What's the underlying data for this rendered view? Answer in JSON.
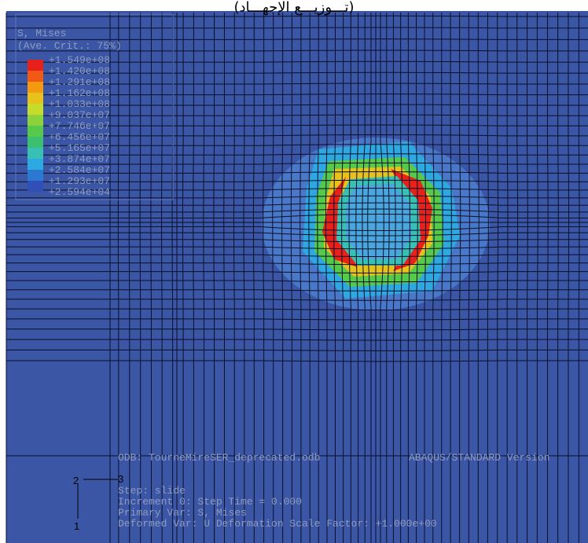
{
  "title": "(تـــوزيـــع الإجهـــاد)",
  "legend": {
    "heading": "S, Mises",
    "subheading": "(Ave. Crit.: 75%)",
    "labels": [
      "+1.549e+08",
      "+1.420e+08",
      "+1.291e+08",
      "+1.162e+08",
      "+1.033e+08",
      "+9.037e+07",
      "+7.746e+07",
      "+6.456e+07",
      "+5.165e+07",
      "+3.874e+07",
      "+2.584e+07",
      "+1.293e+07",
      "+2.594e+04"
    ],
    "colors": [
      "#e8201a",
      "#f05a14",
      "#f59a10",
      "#e6c21a",
      "#c6dc2a",
      "#8cd23c",
      "#56c84a",
      "#3cbf70",
      "#38c0b4",
      "#2ea8e0",
      "#2a78d0",
      "#3050b8"
    ]
  },
  "info": {
    "odb": "ODB: TourneMireSER_deprecated.odb",
    "version": "ABAQUS/STANDARD Version",
    "step": "Step: slide",
    "increment": "Increment      0: Step Time =    0.000",
    "primary": "Primary Var: S, Mises",
    "deformed": "Deformed Var: U   Deformation Scale Factor: +1.000e+00"
  },
  "triad": {
    "a": "2",
    "b": "3",
    "c": "1"
  }
}
